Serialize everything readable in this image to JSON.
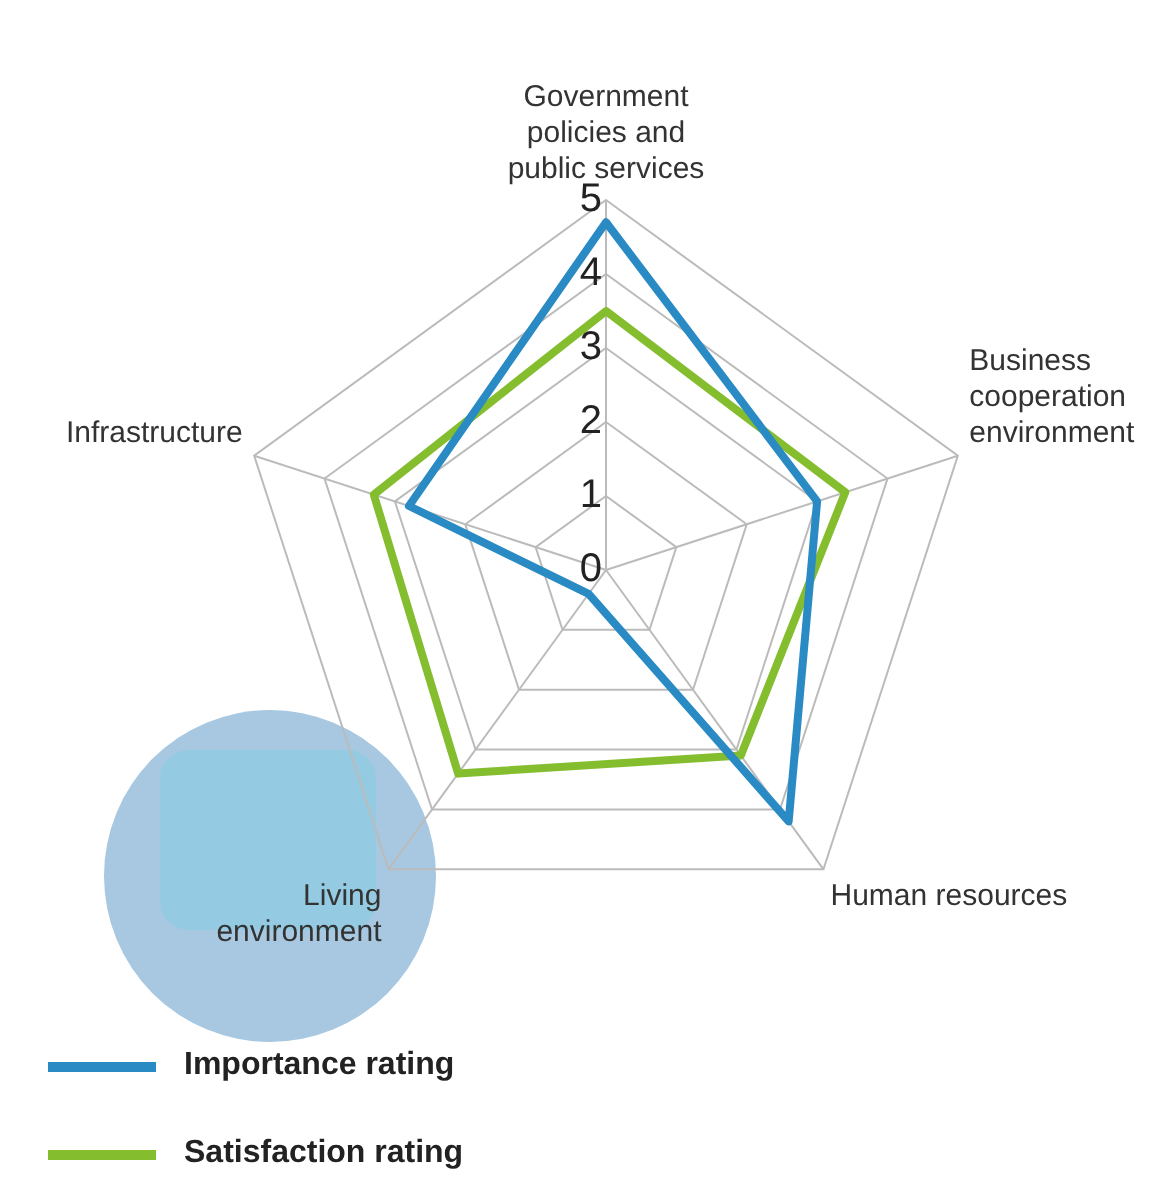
{
  "chart_data": {
    "type": "radar",
    "categories": [
      "Government policies and public services",
      "Business cooperation environment",
      "Human resources",
      "Living environment",
      "Infrastructure"
    ],
    "series": [
      {
        "name": "Importance rating",
        "color": "#2a8bc4",
        "values": [
          4.7,
          3.0,
          4.2,
          0.4,
          2.8
        ]
      },
      {
        "name": "Satisfaction rating",
        "color": "#84bd2e",
        "values": [
          3.5,
          3.4,
          3.1,
          3.4,
          3.3
        ]
      }
    ],
    "ylim": [
      0,
      5
    ],
    "yticks": [
      0,
      1,
      2,
      3,
      4,
      5
    ],
    "grid": true,
    "legend": "bottom left",
    "marker": "none",
    "line_style": "solid"
  }
}
